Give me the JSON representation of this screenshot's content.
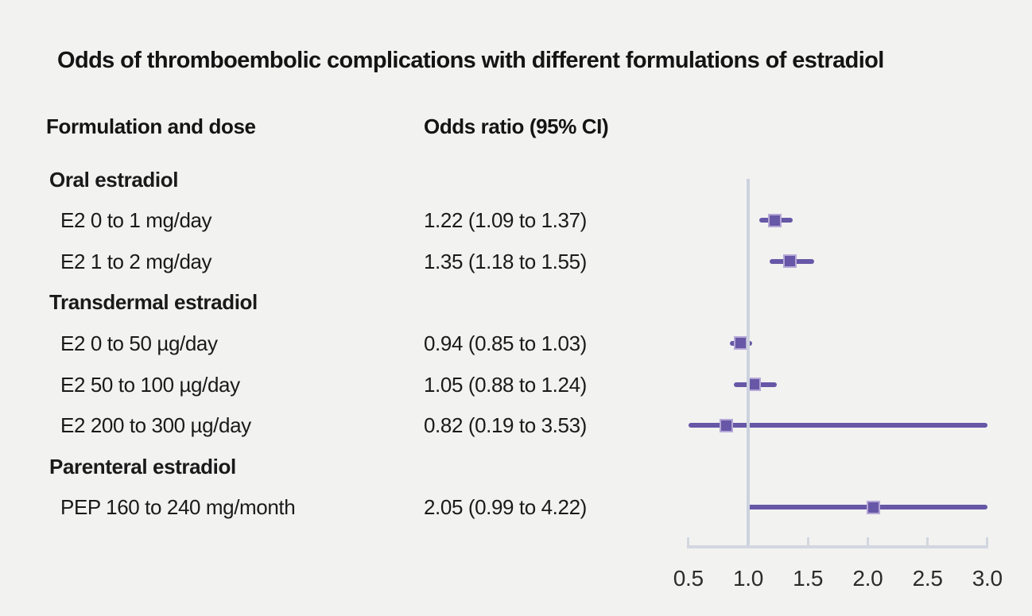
{
  "chart_data": {
    "type": "forest",
    "title": "Odds of thromboembolic complications with different formulations of estradiol",
    "columns": {
      "formulation": "Formulation and dose",
      "odds_ratio": "Odds ratio (95% CI)"
    },
    "rows": [
      {
        "type": "group",
        "label": "Oral estradiol"
      },
      {
        "type": "item",
        "label": "E2 0 to 1 mg/day",
        "value_text": "1.22 (1.09 to 1.37)",
        "or": 1.22,
        "lo": 1.09,
        "hi": 1.37
      },
      {
        "type": "item",
        "label": "E2 1 to 2 mg/day",
        "value_text": "1.35 (1.18 to 1.55)",
        "or": 1.35,
        "lo": 1.18,
        "hi": 1.55
      },
      {
        "type": "group",
        "label": "Transdermal estradiol"
      },
      {
        "type": "item",
        "label": "E2 0 to 50 µg/day",
        "value_text": "0.94 (0.85 to 1.03)",
        "or": 0.94,
        "lo": 0.85,
        "hi": 1.03
      },
      {
        "type": "item",
        "label": "E2 50 to 100 µg/day",
        "value_text": "1.05 (0.88 to 1.24)",
        "or": 1.05,
        "lo": 0.88,
        "hi": 1.24
      },
      {
        "type": "item",
        "label": "E2 200 to 300 µg/day",
        "value_text": "0.82 (0.19 to 3.53)",
        "or": 0.82,
        "lo": 0.19,
        "hi": 3.53
      },
      {
        "type": "group",
        "label": "Parenteral estradiol"
      },
      {
        "type": "item",
        "label": "PEP 160 to 240 mg/month",
        "value_text": "2.05 (0.99 to 4.22)",
        "or": 2.05,
        "lo": 0.99,
        "hi": 4.22
      }
    ],
    "axis": {
      "min": 0.5,
      "max": 3.0,
      "reference": 1.0,
      "ticks": [
        0.5,
        1.0,
        1.5,
        2.0,
        2.5,
        3.0
      ],
      "tick_labels": [
        "0.5",
        "1.0",
        "1.5",
        "2.0",
        "2.5",
        "3.0"
      ]
    }
  },
  "colors": {
    "background": "#f2f2f1",
    "marker_fill": "#6757a7",
    "marker_border": "#b5a8d6",
    "ci_line": "#6757a7",
    "reference_line": "#ccd2de",
    "axis_line": "#d2d7e0",
    "text": "#1a1a1a"
  }
}
